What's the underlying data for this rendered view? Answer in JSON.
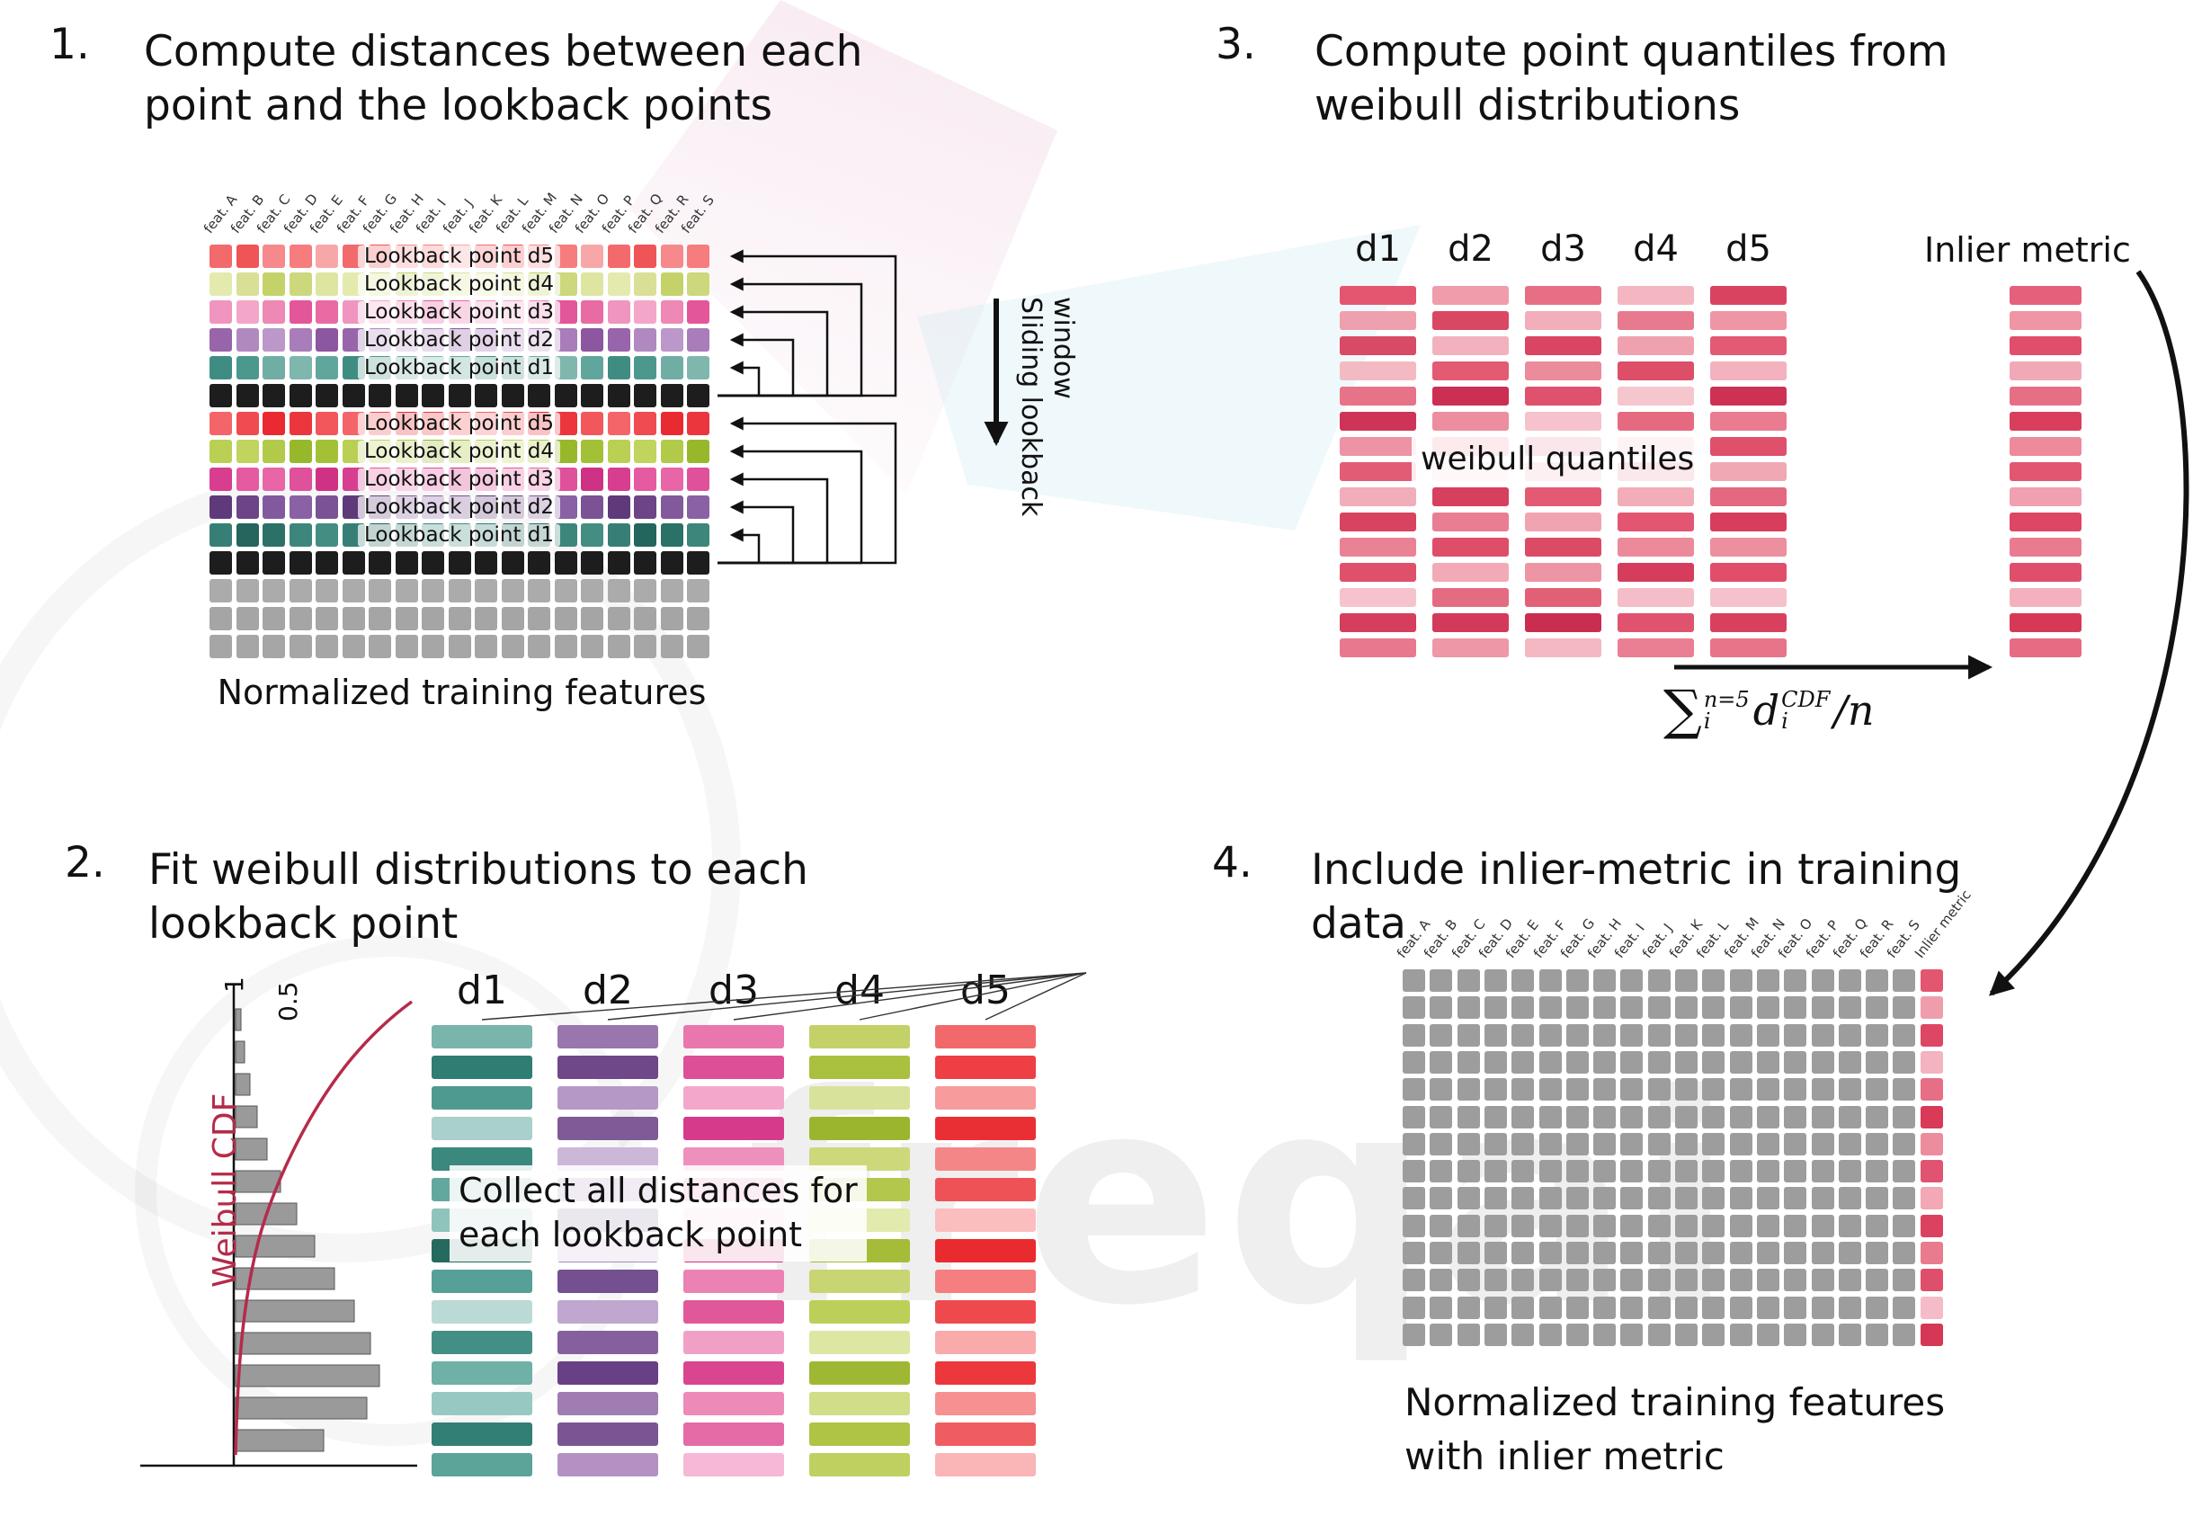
{
  "colors": {
    "black_cell": "#161616",
    "gray_cell": "#ababab",
    "grid_gray": "#9d9d9d",
    "arrow": "#111111",
    "cdf_red": "#b52b4a"
  },
  "watermark": {
    "text": "freqai"
  },
  "steps": [
    {
      "num": "1.",
      "title_line1": "Compute distances between each",
      "title_line2": "point and the lookback points"
    },
    {
      "num": "2.",
      "title_line1": "Fit weibull distributions to each",
      "title_line2": "lookback point"
    },
    {
      "num": "3.",
      "title_line1": "Compute point quantiles from",
      "title_line2": "weibull distributions"
    },
    {
      "num": "4.",
      "title_line1": "Include inlier-metric in training",
      "title_line2": "data"
    }
  ],
  "features": [
    "feat. A",
    "feat. B",
    "feat. C",
    "feat. D",
    "feat. E",
    "feat. F",
    "feat. G",
    "feat. H",
    "feat. I",
    "feat. J",
    "feat. K",
    "feat. L",
    "feat. M",
    "feat. N",
    "feat. O",
    "feat. P",
    "feat. Q",
    "feat. R",
    "feat. S"
  ],
  "panel1": {
    "caption": "Normalized training features",
    "sliding_label": "Sliding lookback window",
    "rows": [
      {
        "type": "lookback",
        "label": "Lookback point d5",
        "shades": [
          "#f26a6c",
          "#f5898b",
          "#f8a7a9",
          "#ef5457",
          "#f67c7e"
        ]
      },
      {
        "type": "lookback",
        "label": "Lookback point d4",
        "shades": [
          "#d9e096",
          "#cdd87d",
          "#e4eaae",
          "#c5d269",
          "#dee5a1"
        ]
      },
      {
        "type": "lookback",
        "label": "Lookback point d3",
        "shades": [
          "#ee88b5",
          "#e96ba4",
          "#f4a6c8",
          "#e4569a",
          "#f095bf"
        ]
      },
      {
        "type": "lookback",
        "label": "Lookback point d2",
        "shades": [
          "#a87dba",
          "#9865ab",
          "#bb97ca",
          "#8d56a0",
          "#b089c1"
        ]
      },
      {
        "type": "lookback",
        "label": "Lookback point d1",
        "shades": [
          "#61a69d",
          "#4c988e",
          "#7fb7af",
          "#3f8d82",
          "#70aea5"
        ]
      },
      {
        "type": "black",
        "shades": [
          "#161616",
          "#1d1d1d",
          "#101010"
        ]
      },
      {
        "type": "lookback",
        "label": "Lookback point d5",
        "shades": [
          "#f04b50",
          "#ec363d",
          "#f4656a",
          "#e92a31",
          "#f2575c"
        ]
      },
      {
        "type": "lookback",
        "label": "Lookback point d4",
        "shades": [
          "#b2ca4a",
          "#a3c136",
          "#c0d45e",
          "#98b82c",
          "#bad054"
        ]
      },
      {
        "type": "lookback",
        "label": "Lookback point d3",
        "shades": [
          "#e0519b",
          "#d73e8f",
          "#e866a8",
          "#cf3184",
          "#e45ba1"
        ]
      },
      {
        "type": "lookback",
        "label": "Lookback point d2",
        "shades": [
          "#7b5295",
          "#6c4487",
          "#8a61a4",
          "#5f3a7a",
          "#82599c"
        ]
      },
      {
        "type": "lookback",
        "label": "Lookback point d1",
        "shades": [
          "#377f76",
          "#2b7168",
          "#438d83",
          "#24655d",
          "#3d867c"
        ]
      },
      {
        "type": "black",
        "shades": [
          "#161616",
          "#1d1d1d",
          "#101010"
        ]
      },
      {
        "type": "gray",
        "shades": [
          "#ababab",
          "#a2a2a2",
          "#b4b4b4"
        ]
      },
      {
        "type": "gray",
        "shades": [
          "#ababab",
          "#b1b1b1",
          "#a5a5a5"
        ]
      },
      {
        "type": "gray",
        "shades": [
          "#aeaeae",
          "#a6a6a6",
          "#b3b3b3"
        ]
      }
    ]
  },
  "panel2": {
    "overlay_line1": "Collect all distances for",
    "overlay_line2": "each lookback point",
    "plot": {
      "tick1": "1",
      "tick05": "0.5",
      "cdf_label": "Weibull CDF",
      "bar_lengths": [
        6,
        10,
        16,
        24,
        35,
        50,
        68,
        88,
        110,
        132,
        150,
        160,
        146,
        98
      ]
    },
    "columns": [
      {
        "name": "d1",
        "colors": [
          "#7ab5ac",
          "#2f7d73",
          "#4f9a90",
          "#a9d0ca",
          "#3a887e",
          "#63a89f",
          "#8ec4bc",
          "#26695f",
          "#57a097",
          "#bcdad5",
          "#438f85",
          "#6fb0a7",
          "#97c9c2",
          "#317f75",
          "#5ca399"
        ]
      },
      {
        "name": "d2",
        "colors": [
          "#9a76ae",
          "#6e4889",
          "#b598c6",
          "#7f5a97",
          "#cdb7d8",
          "#8a65a1",
          "#5f3a7b",
          "#a988ba",
          "#745090",
          "#c0a7cf",
          "#865f9e",
          "#693f85",
          "#9f7cb2",
          "#7a5593",
          "#b392c3"
        ]
      },
      {
        "name": "d3",
        "colors": [
          "#e977ad",
          "#dd4f96",
          "#f3a8cb",
          "#d63b8b",
          "#ee90bc",
          "#e261a0",
          "#f8c3dc",
          "#d1317f",
          "#eb82b3",
          "#e05899",
          "#f1a0c5",
          "#da4590",
          "#ed8ab7",
          "#e46ba6",
          "#f6b8d4"
        ]
      },
      {
        "name": "d4",
        "colors": [
          "#c4d169",
          "#aac03f",
          "#d9e29a",
          "#9cb52f",
          "#cdd87b",
          "#b3c74d",
          "#e3eaad",
          "#a4bc37",
          "#c9d572",
          "#bccf59",
          "#dde6a3",
          "#9fb833",
          "#d2dd88",
          "#afc445",
          "#c0d060"
        ]
      },
      {
        "name": "d5",
        "colors": [
          "#f2696b",
          "#ed3f44",
          "#f79b9c",
          "#ea2f34",
          "#f58688",
          "#ef5256",
          "#fbbdbe",
          "#e92a2f",
          "#f47e80",
          "#ee4a4e",
          "#f9aaab",
          "#ec373c",
          "#f69192",
          "#f05d60",
          "#fab5b6"
        ]
      }
    ]
  },
  "panel3": {
    "overlay": "weibull quantiles",
    "inlier_label": "Inlier metric",
    "formula": {
      "sum": "∑",
      "sum_sup": "n=5",
      "sum_sub": "i",
      "var": "d",
      "var_sup": "CDF",
      "var_sub": "i",
      "tail": "/n"
    },
    "columns": [
      {
        "name": "d1",
        "colors": [
          "#e4556f",
          "#efa0ae",
          "#d94a66",
          "#f4bac4",
          "#e77388",
          "#ce3457",
          "#ed93a4",
          "#e25c75",
          "#f1adba",
          "#d84360",
          "#ea8296",
          "#df516b",
          "#f6c3cc",
          "#d53e5c",
          "#e8788d"
        ]
      },
      {
        "name": "d2",
        "colors": [
          "#ef9dab",
          "#da4763",
          "#f3b1bd",
          "#e35a73",
          "#cb2f53",
          "#ec8e9f",
          "#e0546e",
          "#f5c0c9",
          "#d63f5d",
          "#e97e92",
          "#de4e69",
          "#f2aab7",
          "#e46c82",
          "#d2395a",
          "#ee97a6"
        ]
      },
      {
        "name": "d3",
        "colors": [
          "#e66f85",
          "#f2aeba",
          "#d94562",
          "#ec8b9c",
          "#df516c",
          "#f6c2cb",
          "#d33a59",
          "#ea8095",
          "#e45a73",
          "#f0a4b2",
          "#dc4b66",
          "#ee95a5",
          "#e26076",
          "#c92e50",
          "#f4b8c2"
        ]
      },
      {
        "name": "d4",
        "colors": [
          "#f4b7c2",
          "#e87a8f",
          "#f0a1af",
          "#dd4e69",
          "#f6c6ce",
          "#e56a80",
          "#ef99a8",
          "#da4260",
          "#f2adb9",
          "#e35672",
          "#ec8a9b",
          "#d63c5b",
          "#f5bdc7",
          "#e0536e",
          "#ea7f93"
        ]
      },
      {
        "name": "d5",
        "colors": [
          "#da4360",
          "#ee96a5",
          "#e25a73",
          "#f3b2be",
          "#cd3255",
          "#e97c90",
          "#df506b",
          "#f1a8b5",
          "#e36880",
          "#d73e5c",
          "#ec8f9f",
          "#e14e6a",
          "#f5c1ca",
          "#d8415e",
          "#e77489"
        ]
      }
    ],
    "inlier_colors": [
      "#e5607a",
      "#ef95a5",
      "#e04e6b",
      "#f2a9b7",
      "#e66e85",
      "#da3e5d",
      "#ed8a9c",
      "#e25672",
      "#f0a0b0",
      "#dd4664",
      "#e97b90",
      "#df4f6d",
      "#f3b1be",
      "#d63956",
      "#e76b83"
    ]
  },
  "panel4": {
    "inlier_header": "Inlier metric",
    "rows": 14,
    "caption_line1": "Normalized training features",
    "caption_line2": "with inlier metric",
    "inlier_colors": [
      "#e35670",
      "#ef9dac",
      "#dd4763",
      "#f3b3bf",
      "#e66f85",
      "#d93a58",
      "#ec8c9d",
      "#e05472",
      "#f2a8b5",
      "#db4260",
      "#e97b8f",
      "#de4f6c",
      "#f5bcc7",
      "#d63754"
    ]
  }
}
